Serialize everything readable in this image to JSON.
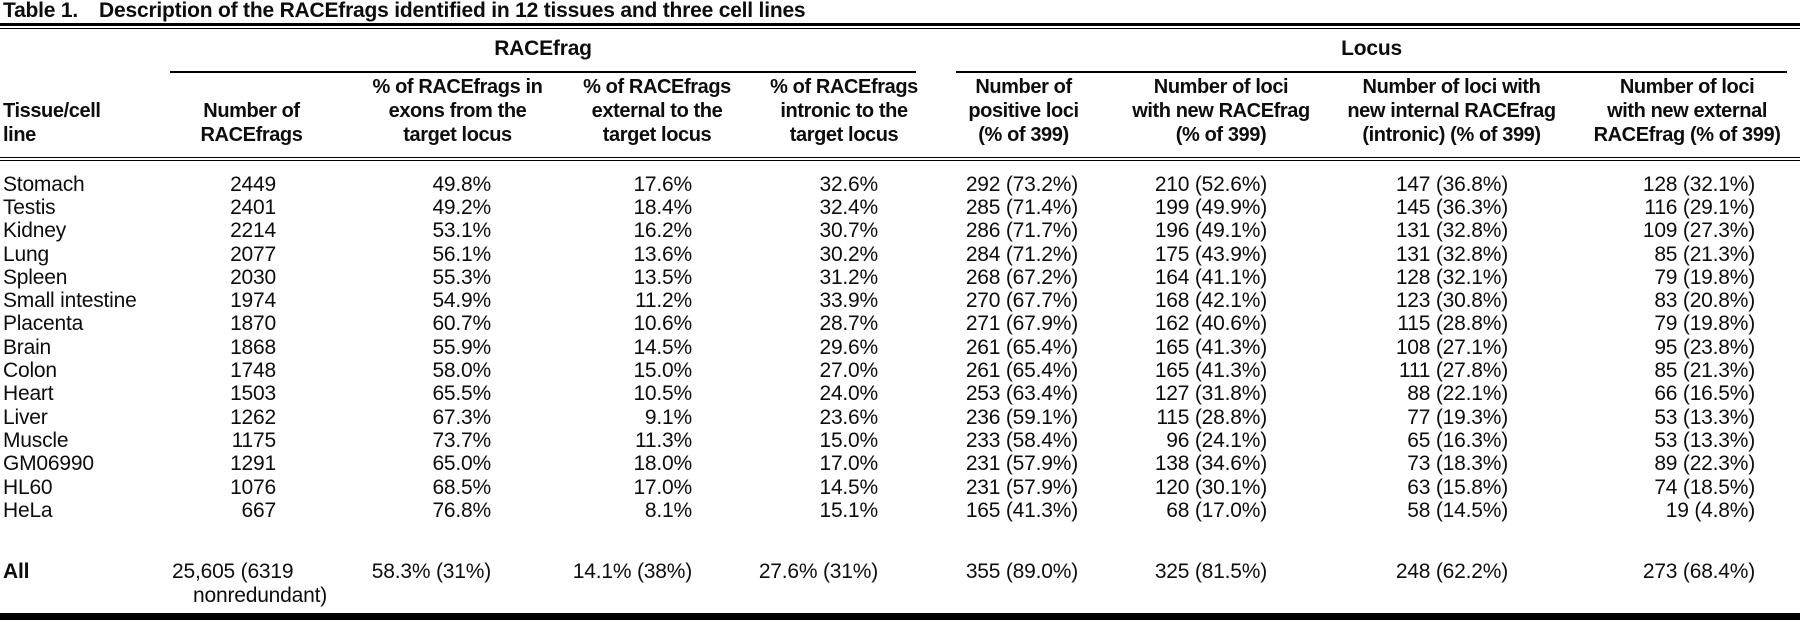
{
  "title": {
    "label": "Table 1.",
    "description": "Description of the RACEfrags identified in 12 tissues and three cell lines"
  },
  "table": {
    "group_headers": [
      {
        "label": "RACEfrag",
        "span": 4
      },
      {
        "label": "Locus",
        "span": 4
      }
    ],
    "column_headers": [
      "Tissue/cell\nline",
      "Number of\nRACEfrags",
      "% of RACEfrags in\nexons from the\ntarget locus",
      "% of RACEfrags\nexternal to the\ntarget locus",
      "% of RACEfrags\nintronic to the\ntarget locus",
      "Number of\npositive loci\n(% of 399)",
      "Number of loci\nwith new RACEfrag\n(% of 399)",
      "Number of loci with\nnew internal RACEfrag\n(intronic) (% of 399)",
      "Number of loci\nwith new external\nRACEfrag (% of 399)"
    ],
    "rows": [
      {
        "tissue": "Stomach",
        "values": [
          "2449",
          "49.8%",
          "17.6%",
          "32.6%",
          "292 (73.2%)",
          "210 (52.6%)",
          "147 (36.8%)",
          "128 (32.1%)"
        ]
      },
      {
        "tissue": "Testis",
        "values": [
          "2401",
          "49.2%",
          "18.4%",
          "32.4%",
          "285 (71.4%)",
          "199 (49.9%)",
          "145 (36.3%)",
          "116 (29.1%)"
        ]
      },
      {
        "tissue": "Kidney",
        "values": [
          "2214",
          "53.1%",
          "16.2%",
          "30.7%",
          "286 (71.7%)",
          "196 (49.1%)",
          "131 (32.8%)",
          "109 (27.3%)"
        ]
      },
      {
        "tissue": "Lung",
        "values": [
          "2077",
          "56.1%",
          "13.6%",
          "30.2%",
          "284 (71.2%)",
          "175 (43.9%)",
          "131 (32.8%)",
          "85 (21.3%)"
        ]
      },
      {
        "tissue": "Spleen",
        "values": [
          "2030",
          "55.3%",
          "13.5%",
          "31.2%",
          "268 (67.2%)",
          "164 (41.1%)",
          "128 (32.1%)",
          "79 (19.8%)"
        ]
      },
      {
        "tissue": "Small intestine",
        "values": [
          "1974",
          "54.9%",
          "11.2%",
          "33.9%",
          "270 (67.7%)",
          "168 (42.1%)",
          "123 (30.8%)",
          "83 (20.8%)"
        ]
      },
      {
        "tissue": "Placenta",
        "values": [
          "1870",
          "60.7%",
          "10.6%",
          "28.7%",
          "271 (67.9%)",
          "162 (40.6%)",
          "115 (28.8%)",
          "79 (19.8%)"
        ]
      },
      {
        "tissue": "Brain",
        "values": [
          "1868",
          "55.9%",
          "14.5%",
          "29.6%",
          "261 (65.4%)",
          "165 (41.3%)",
          "108 (27.1%)",
          "95 (23.8%)"
        ]
      },
      {
        "tissue": "Colon",
        "values": [
          "1748",
          "58.0%",
          "15.0%",
          "27.0%",
          "261 (65.4%)",
          "165 (41.3%)",
          "111 (27.8%)",
          "85 (21.3%)"
        ]
      },
      {
        "tissue": "Heart",
        "values": [
          "1503",
          "65.5%",
          "10.5%",
          "24.0%",
          "253 (63.4%)",
          "127 (31.8%)",
          "88 (22.1%)",
          "66 (16.5%)"
        ]
      },
      {
        "tissue": "Liver",
        "values": [
          "1262",
          "67.3%",
          "9.1%",
          "23.6%",
          "236 (59.1%)",
          "115 (28.8%)",
          "77 (19.3%)",
          "53 (13.3%)"
        ]
      },
      {
        "tissue": "Muscle",
        "values": [
          "1175",
          "73.7%",
          "11.3%",
          "15.0%",
          "233 (58.4%)",
          "96 (24.1%)",
          "65 (16.3%)",
          "53 (13.3%)"
        ]
      },
      {
        "tissue": "GM06990",
        "values": [
          "1291",
          "65.0%",
          "18.0%",
          "17.0%",
          "231 (57.9%)",
          "138 (34.6%)",
          "73 (18.3%)",
          "89 (22.3%)"
        ]
      },
      {
        "tissue": "HL60",
        "values": [
          "1076",
          "68.5%",
          "17.0%",
          "14.5%",
          "231 (57.9%)",
          "120 (30.1%)",
          "63 (15.8%)",
          "74 (18.5%)"
        ]
      },
      {
        "tissue": "HeLa",
        "values": [
          "667",
          "76.8%",
          "8.1%",
          "15.1%",
          "165 (41.3%)",
          "68 (17.0%)",
          "58 (14.5%)",
          "19 (4.8%)"
        ]
      }
    ],
    "summary_row": {
      "tissue": "All",
      "values": [
        "25,605 (6319\nnonredundant)",
        "58.3% (31%)",
        "14.1% (38%)",
        "27.6% (31%)",
        "355 (89.0%)",
        "325 (81.5%)",
        "248 (62.2%)",
        "273 (68.4%)"
      ]
    }
  }
}
